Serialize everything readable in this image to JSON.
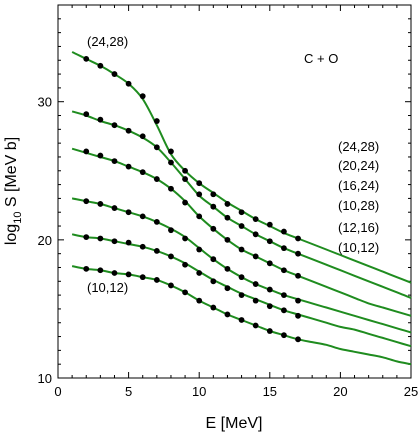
{
  "chart_data": {
    "type": "line",
    "title": "",
    "xlabel": "E [MeV]",
    "ylabel_main": "log",
    "ylabel_sub": "10",
    "ylabel_rest": " S [MeV b]",
    "xlim": [
      0,
      25
    ],
    "ylim": [
      10,
      37
    ],
    "xticks": [
      0,
      5,
      10,
      15,
      20,
      25
    ],
    "yticks": [
      10,
      20,
      30
    ],
    "grid": false,
    "line_color": "#1f8c1f",
    "point_color": "#000000",
    "reaction_label": "C + O",
    "series": [
      {
        "name": "(24,28)",
        "curve": {
          "x": [
            1,
            2,
            3,
            4,
            5,
            6,
            7,
            8,
            9,
            10,
            11,
            12,
            13,
            14,
            15,
            16,
            17,
            18,
            19,
            20,
            21,
            22,
            23,
            24,
            25
          ],
          "y": [
            33.6,
            33.1,
            32.6,
            32.0,
            31.3,
            30.2,
            28.3,
            26.2,
            25.0,
            24.1,
            23.4,
            22.7,
            22.1,
            21.5,
            21.0,
            20.5,
            20.1,
            19.7,
            19.3,
            18.9,
            18.5,
            18.1,
            17.7,
            17.3,
            16.9
          ]
        },
        "points": {
          "x": [
            2,
            3,
            4,
            5,
            6,
            7,
            8,
            9,
            10,
            11,
            12,
            13,
            14,
            15,
            16,
            17
          ],
          "y": [
            33.1,
            32.6,
            32.0,
            31.3,
            30.4,
            28.6,
            26.4,
            25.0,
            24.1,
            23.3,
            22.6,
            22.0,
            21.5,
            21.1,
            20.6,
            20.1
          ]
        }
      },
      {
        "name": "(20,24)",
        "curve": {
          "x": [
            1,
            2,
            3,
            4,
            5,
            6,
            7,
            8,
            9,
            10,
            11,
            12,
            13,
            14,
            15,
            16,
            17,
            18,
            19,
            20,
            21,
            22,
            23,
            24,
            25
          ],
          "y": [
            29.3,
            29.0,
            28.6,
            28.3,
            27.9,
            27.4,
            26.7,
            25.6,
            24.4,
            23.2,
            22.4,
            21.6,
            21.0,
            20.4,
            19.9,
            19.4,
            19.0,
            18.6,
            18.2,
            17.8,
            17.4,
            17.0,
            16.6,
            16.2,
            15.8
          ]
        },
        "points": {
          "x": [
            2,
            3,
            4,
            5,
            6,
            7,
            8,
            9,
            10,
            11,
            12,
            13,
            14,
            15,
            16,
            17
          ],
          "y": [
            29.1,
            28.7,
            28.3,
            27.9,
            27.5,
            26.7,
            25.6,
            24.4,
            23.3,
            22.4,
            21.6,
            21.0,
            20.4,
            19.9,
            19.4,
            19.0
          ]
        }
      },
      {
        "name": "(16,24)",
        "curve": {
          "x": [
            1,
            2,
            3,
            4,
            5,
            6,
            7,
            8,
            9,
            10,
            11,
            12,
            13,
            14,
            15,
            16,
            17,
            18,
            19,
            20,
            21,
            22,
            23,
            24,
            25
          ],
          "y": [
            26.6,
            26.3,
            26.0,
            25.7,
            25.3,
            24.9,
            24.4,
            23.7,
            22.8,
            21.7,
            20.8,
            20.0,
            19.3,
            18.8,
            18.3,
            17.8,
            17.4,
            17.0,
            16.6,
            16.2,
            15.8,
            15.4,
            15.1,
            14.8,
            14.5
          ]
        },
        "points": {
          "x": [
            2,
            3,
            4,
            5,
            6,
            7,
            8,
            9,
            10,
            11,
            12,
            13,
            14,
            15,
            16,
            17
          ],
          "y": [
            26.4,
            26.1,
            25.7,
            25.3,
            24.9,
            24.4,
            23.7,
            22.7,
            21.7,
            20.8,
            20.0,
            19.3,
            18.8,
            18.3,
            17.8,
            17.4
          ]
        }
      },
      {
        "name": "(10,28)",
        "curve": {
          "x": [
            1,
            2,
            3,
            4,
            5,
            6,
            7,
            8,
            9,
            10,
            11,
            12,
            13,
            14,
            15,
            16,
            17,
            18,
            19,
            20,
            21,
            22,
            23,
            24,
            25
          ],
          "y": [
            23.0,
            22.8,
            22.6,
            22.3,
            22.0,
            21.7,
            21.3,
            20.8,
            20.2,
            19.4,
            18.6,
            17.9,
            17.3,
            16.8,
            16.4,
            16.0,
            15.7,
            15.4,
            15.1,
            14.8,
            14.5,
            14.2,
            13.9,
            13.6,
            13.3
          ]
        },
        "points": {
          "x": [
            2,
            3,
            4,
            5,
            6,
            7,
            8,
            9,
            10,
            11,
            12,
            13,
            14,
            15,
            16,
            17
          ],
          "y": [
            22.8,
            22.6,
            22.3,
            22.0,
            21.7,
            21.3,
            20.7,
            20.1,
            19.3,
            18.6,
            17.9,
            17.3,
            16.8,
            16.4,
            16.0,
            15.6
          ]
        }
      },
      {
        "name": "(12,16)",
        "curve": {
          "x": [
            1,
            2,
            3,
            4,
            5,
            6,
            7,
            8,
            9,
            10,
            11,
            12,
            13,
            14,
            15,
            16,
            17,
            18,
            19,
            20,
            21,
            22,
            23,
            24,
            25
          ],
          "y": [
            20.4,
            20.2,
            20.1,
            19.9,
            19.7,
            19.5,
            19.2,
            18.8,
            18.3,
            17.7,
            17.1,
            16.6,
            16.1,
            15.7,
            15.3,
            14.9,
            14.6,
            14.3,
            14.0,
            13.7,
            13.5,
            13.2,
            12.9,
            12.6,
            12.3
          ]
        },
        "points": {
          "x": [
            2,
            3,
            4,
            5,
            6,
            7,
            8,
            9,
            10,
            11,
            12,
            13,
            14,
            15,
            16,
            17
          ],
          "y": [
            20.2,
            20.1,
            19.9,
            19.8,
            19.5,
            19.2,
            18.8,
            18.2,
            17.6,
            17.0,
            16.5,
            16.0,
            15.6,
            15.2,
            14.9,
            14.5
          ]
        }
      },
      {
        "name": "(10,12)",
        "curve": {
          "x": [
            1,
            2,
            3,
            4,
            5,
            6,
            7,
            8,
            9,
            10,
            11,
            12,
            13,
            14,
            15,
            16,
            17,
            18,
            19,
            20,
            21,
            22,
            23,
            24,
            25
          ],
          "y": [
            18.1,
            17.9,
            17.8,
            17.6,
            17.5,
            17.3,
            17.1,
            16.7,
            16.2,
            15.6,
            15.1,
            14.6,
            14.2,
            13.8,
            13.4,
            13.1,
            12.8,
            12.6,
            12.4,
            12.1,
            11.9,
            11.7,
            11.5,
            11.2,
            11.0
          ]
        },
        "points": {
          "x": [
            2,
            3,
            4,
            5,
            6,
            7,
            8,
            9,
            10,
            11,
            12,
            13,
            14,
            15,
            16,
            17
          ],
          "y": [
            17.9,
            17.8,
            17.6,
            17.5,
            17.3,
            17.1,
            16.7,
            16.2,
            15.6,
            15.1,
            14.6,
            14.2,
            13.8,
            13.4,
            13.1,
            12.8
          ]
        }
      }
    ],
    "legend_labels": [
      "(24,28)",
      "(20,24)",
      "(16,24)",
      "(10,28)",
      "(12,16)",
      "(10,12)"
    ],
    "top_curve_label": "(24,28)",
    "bottom_curve_label": "(10,12)"
  }
}
